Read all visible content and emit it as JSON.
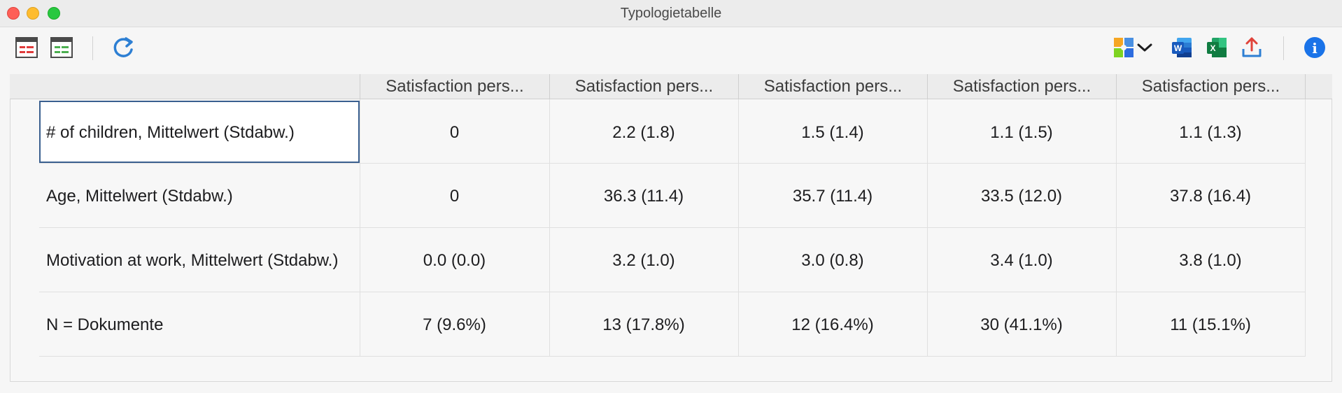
{
  "window": {
    "title": "Typologietabelle"
  },
  "toolbar": {
    "left_icons": [
      "table-view-red-icon",
      "table-view-green-icon",
      "refresh-icon"
    ],
    "right_icons": [
      "color-puzzle-icon",
      "chevron-down-icon",
      "word-export-icon",
      "excel-export-icon",
      "share-export-icon",
      "info-icon"
    ],
    "word_letter": "W",
    "excel_letter": "X",
    "info_letter": "i"
  },
  "table": {
    "columns": [
      "Satisfaction pers...",
      "Satisfaction pers...",
      "Satisfaction pers...",
      "Satisfaction pers...",
      "Satisfaction pers..."
    ],
    "rows": [
      {
        "label": "# of children, Mittelwert (Stdabw.)",
        "values": [
          "0",
          "2.2 (1.8)",
          "1.5 (1.4)",
          "1.1 (1.5)",
          "1.1 (1.3)"
        ]
      },
      {
        "label": "Age, Mittelwert (Stdabw.)",
        "values": [
          "0",
          "36.3 (11.4)",
          "35.7 (11.4)",
          "33.5 (12.0)",
          "37.8 (16.4)"
        ]
      },
      {
        "label": "Motivation at work, Mittelwert (Stdabw.)",
        "values": [
          "0.0 (0.0)",
          "3.2 (1.0)",
          "3.0 (0.8)",
          "3.4 (1.0)",
          "3.8 (1.0)"
        ]
      },
      {
        "label": "N = Dokumente",
        "values": [
          "7 (9.6%)",
          "13 (17.8%)",
          "12 (16.4%)",
          "30 (41.1%)",
          "11 (15.1%)"
        ]
      }
    ]
  }
}
